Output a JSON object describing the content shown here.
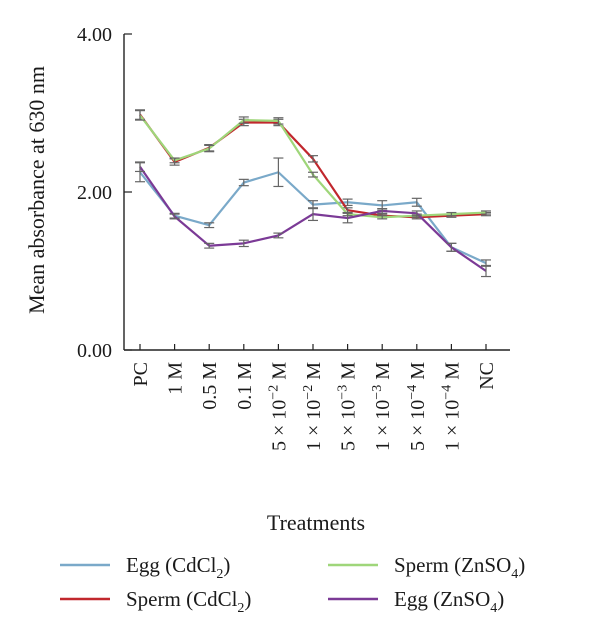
{
  "chart_data": {
    "type": "line",
    "ylabel": "Mean absorbance at 630 nm",
    "xlabel": "Treatments",
    "ylim": [
      0,
      4
    ],
    "yticks": [
      "0.00",
      "2.00",
      "4.00"
    ],
    "yticks_values": [
      0,
      2,
      4
    ],
    "categories": [
      {
        "label": "PC"
      },
      {
        "label": "1 M"
      },
      {
        "label": "0.5 M"
      },
      {
        "label": "0.1 M"
      },
      {
        "label": "5 × 10",
        "exp": "−2",
        "unit": " M"
      },
      {
        "label": "1 × 10",
        "exp": "−2",
        "unit": " M"
      },
      {
        "label": "5 × 10",
        "exp": "−3",
        "unit": " M"
      },
      {
        "label": "1 × 10",
        "exp": "−3",
        "unit": " M"
      },
      {
        "label": "5 × 10",
        "exp": "−4",
        "unit": " M"
      },
      {
        "label": "1 × 10",
        "exp": "−4",
        "unit": " M"
      },
      {
        "label": "NC"
      }
    ],
    "series": [
      {
        "name": "Egg (CdCl",
        "sub": "2",
        "close": ")",
        "color": "#7aa9c9",
        "values": [
          2.25,
          1.7,
          1.58,
          2.12,
          2.25,
          1.84,
          1.87,
          1.83,
          1.87,
          1.3,
          1.1
        ],
        "errors": [
          0.12,
          0.03,
          0.03,
          0.04,
          0.18,
          0.05,
          0.04,
          0.06,
          0.05,
          0.05,
          0.04
        ]
      },
      {
        "name": "Sperm (CdCl",
        "sub": "2",
        "close": ")",
        "color": "#c1272d",
        "values": [
          2.98,
          2.38,
          2.56,
          2.88,
          2.88,
          2.42,
          1.77,
          1.7,
          1.68,
          1.7,
          1.72
        ],
        "errors": [
          0.06,
          0.04,
          0.04,
          0.04,
          0.04,
          0.04,
          0.03,
          0.02,
          0.02,
          0.02,
          0.02
        ]
      },
      {
        "name": "Sperm (ZnSO",
        "sub": "4",
        "close": ")",
        "color": "#9fd67a",
        "values": [
          2.97,
          2.4,
          2.55,
          2.91,
          2.9,
          2.22,
          1.72,
          1.68,
          1.7,
          1.72,
          1.74
        ],
        "errors": [
          0.06,
          0.03,
          0.04,
          0.04,
          0.04,
          0.03,
          0.02,
          0.02,
          0.02,
          0.02,
          0.02
        ]
      },
      {
        "name": "Egg (ZnSO",
        "sub": "4",
        "close": ")",
        "color": "#7b3a96",
        "values": [
          2.32,
          1.69,
          1.32,
          1.35,
          1.45,
          1.72,
          1.67,
          1.76,
          1.73,
          1.3,
          1.0
        ],
        "errors": [
          0.06,
          0.03,
          0.03,
          0.04,
          0.03,
          0.08,
          0.06,
          0.03,
          0.03,
          0.05,
          0.07
        ]
      }
    ],
    "legend_position": "bottom",
    "grid": false
  }
}
